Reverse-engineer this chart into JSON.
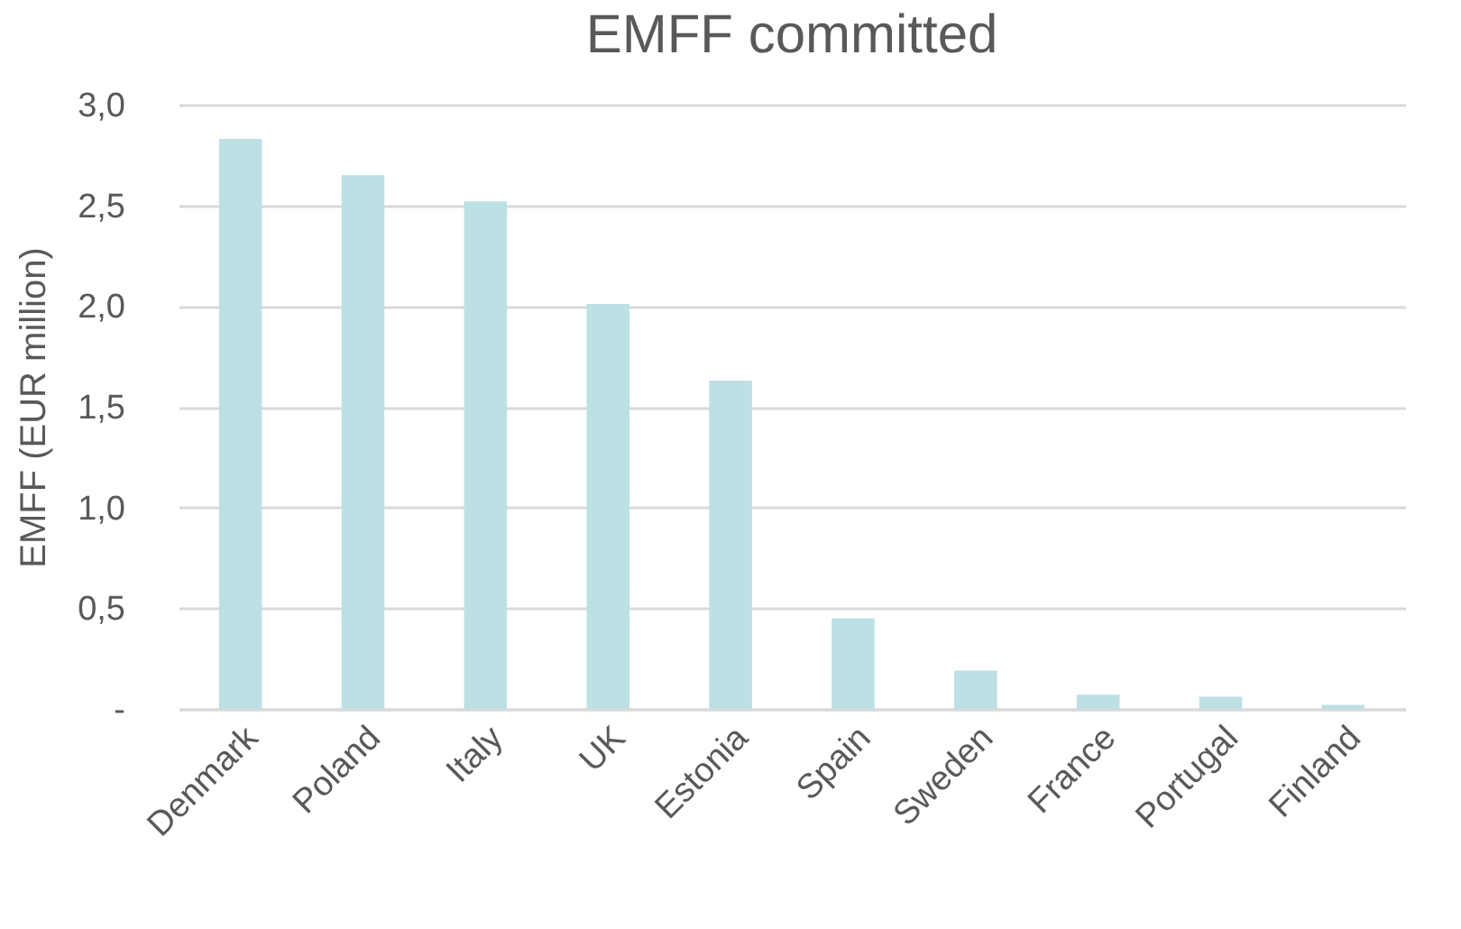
{
  "chart_data": {
    "type": "bar",
    "title": "EMFF committed",
    "ylabel": "EMFF (EUR million)",
    "categories": [
      "Denmark",
      "Poland",
      "Italy",
      "UK",
      "Estonia",
      "Spain",
      "Sweden",
      "France",
      "Portugal",
      "Finland"
    ],
    "values": [
      2.83,
      2.65,
      2.52,
      2.01,
      1.63,
      0.45,
      0.19,
      0.07,
      0.06,
      0.02
    ],
    "color": "#bce0e3",
    "ylim": [
      0,
      3
    ],
    "yticks": [
      {
        "value": 0,
        "label": "-"
      },
      {
        "value": 0.5,
        "label": "0,5"
      },
      {
        "value": 1,
        "label": "1,0"
      },
      {
        "value": 1.5,
        "label": "1,5"
      },
      {
        "value": 2,
        "label": "2,0"
      },
      {
        "value": 2.5,
        "label": "2,5"
      },
      {
        "value": 3,
        "label": "3,0"
      }
    ],
    "grid": "y"
  }
}
